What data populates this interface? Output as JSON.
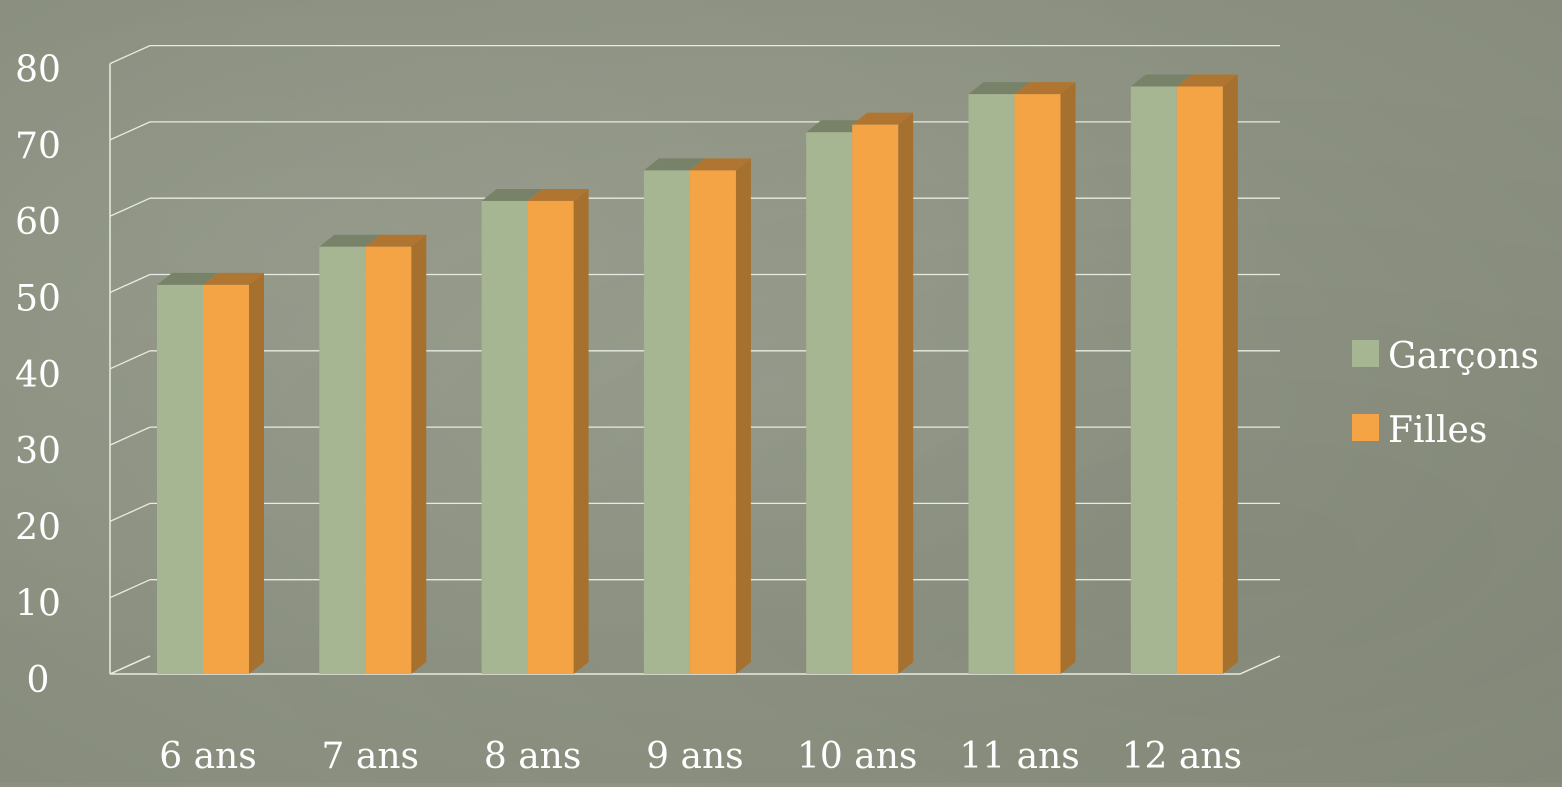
{
  "chart_data": {
    "type": "bar",
    "subtype": "3d-clustered-column",
    "categories": [
      "6 ans",
      "7 ans",
      "8 ans",
      "9 ans",
      "10 ans",
      "11 ans",
      "12 ans"
    ],
    "series": [
      {
        "name": "Garçons",
        "values": [
          51,
          56,
          62,
          66,
          71,
          76,
          77
        ],
        "color": "#a6b592"
      },
      {
        "name": "Filles",
        "values": [
          51,
          56,
          62,
          66,
          72,
          76,
          77
        ],
        "color": "#f4a444"
      }
    ],
    "yticks": [
      "0",
      "10",
      "20",
      "30",
      "40",
      "50",
      "60",
      "70",
      "80"
    ],
    "ylim": [
      0,
      80
    ],
    "grid": true,
    "legend_position": "right",
    "title": "",
    "xlabel": "",
    "ylabel": ""
  }
}
